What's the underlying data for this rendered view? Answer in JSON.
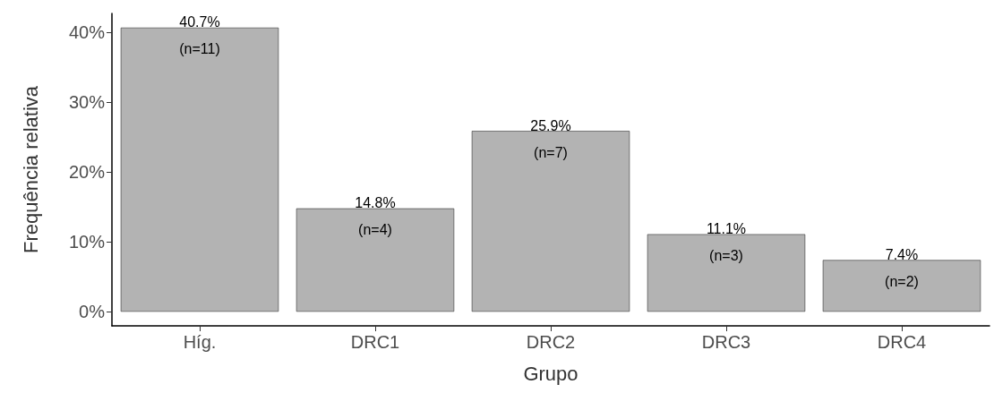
{
  "chart_data": {
    "type": "bar",
    "xlabel": "Grupo",
    "ylabel": "Frequência relativa",
    "categories": [
      "Híg.",
      "DRC1",
      "DRC2",
      "DRC3",
      "DRC4"
    ],
    "values": [
      40.7,
      14.8,
      25.9,
      11.1,
      7.4
    ],
    "value_labels": [
      "40.7%\n(n=11)",
      "14.8%\n(n=4)",
      "25.9%\n(n=7)",
      "11.1%\n(n=3)",
      "7.4%\n(n=2)"
    ],
    "color": "#b3b3b3",
    "ylim": [
      -2.035,
      42.735
    ],
    "yticks": [
      {
        "value": 0,
        "label": "0%"
      },
      {
        "value": 10,
        "label": "10%"
      },
      {
        "value": 20,
        "label": "20%"
      },
      {
        "value": 30,
        "label": "30%"
      },
      {
        "value": 40,
        "label": "40%"
      }
    ],
    "grid": false
  }
}
